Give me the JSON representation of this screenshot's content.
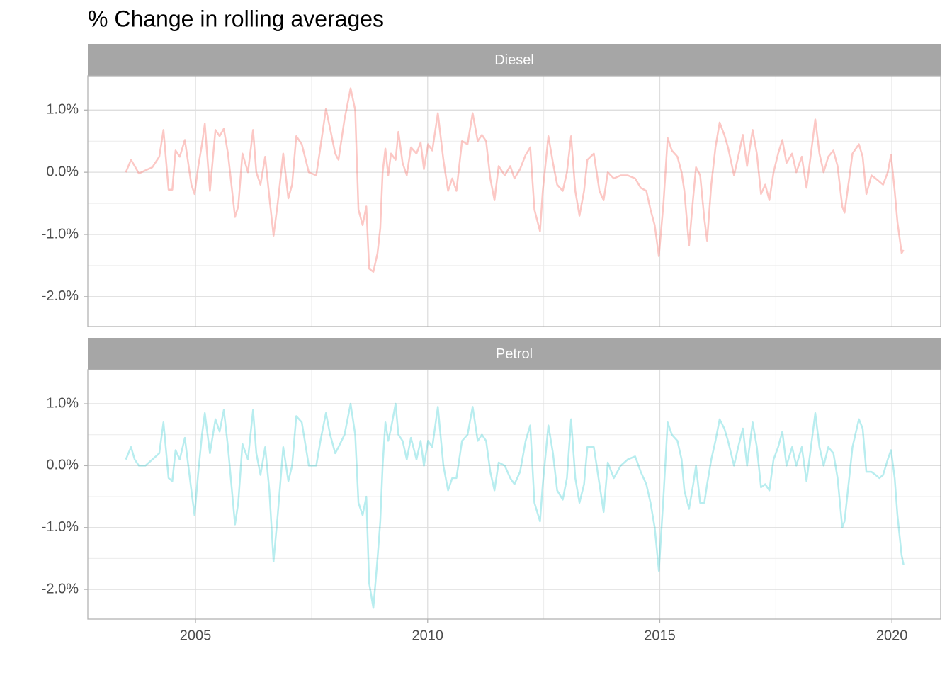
{
  "title": "% Change in rolling averages",
  "chart_data": [
    {
      "type": "line",
      "title": "Diesel",
      "color": "#f8766d",
      "opacity": 0.4,
      "x": [
        2003.5,
        2003.61,
        2003.69,
        2003.78,
        2003.92,
        2004.07,
        2004.22,
        2004.31,
        2004.42,
        2004.5,
        2004.57,
        2004.66,
        2004.77,
        2004.91,
        2004.98,
        2005.06,
        2005.14,
        2005.2,
        2005.31,
        2005.43,
        2005.52,
        2005.61,
        2005.7,
        2005.85,
        2005.92,
        2006.01,
        2006.13,
        2006.24,
        2006.31,
        2006.4,
        2006.5,
        2006.59,
        2006.68,
        2006.77,
        2006.89,
        2007.0,
        2007.08,
        2007.17,
        2007.29,
        2007.44,
        2007.6,
        2007.69,
        2007.81,
        2007.9,
        2008.01,
        2008.08,
        2008.21,
        2008.34,
        2008.44,
        2008.51,
        2008.6,
        2008.68,
        2008.74,
        2008.83,
        2008.92,
        2008.98,
        2009.03,
        2009.09,
        2009.15,
        2009.21,
        2009.31,
        2009.37,
        2009.46,
        2009.55,
        2009.64,
        2009.76,
        2009.85,
        2009.92,
        2010.01,
        2010.1,
        2010.22,
        2010.34,
        2010.44,
        2010.53,
        2010.62,
        2010.74,
        2010.86,
        2010.97,
        2011.08,
        2011.17,
        2011.26,
        2011.35,
        2011.44,
        2011.53,
        2011.66,
        2011.78,
        2011.87,
        2011.99,
        2012.11,
        2012.21,
        2012.3,
        2012.42,
        2012.48,
        2012.6,
        2012.7,
        2012.79,
        2012.91,
        2013.0,
        2013.09,
        2013.18,
        2013.27,
        2013.37,
        2013.44,
        2013.58,
        2013.7,
        2013.79,
        2013.88,
        2014.01,
        2014.16,
        2014.31,
        2014.47,
        2014.59,
        2014.71,
        2014.8,
        2014.89,
        2014.98,
        2015.08,
        2015.17,
        2015.26,
        2015.38,
        2015.47,
        2015.53,
        2015.63,
        2015.72,
        2015.78,
        2015.87,
        2015.96,
        2016.02,
        2016.11,
        2016.2,
        2016.29,
        2016.39,
        2016.47,
        2016.6,
        2016.69,
        2016.79,
        2016.88,
        2017.0,
        2017.09,
        2017.18,
        2017.27,
        2017.36,
        2017.45,
        2017.55,
        2017.64,
        2017.73,
        2017.85,
        2017.94,
        2018.06,
        2018.16,
        2018.24,
        2018.35,
        2018.44,
        2018.53,
        2018.63,
        2018.74,
        2018.83,
        2018.93,
        2018.98,
        2019.08,
        2019.15,
        2019.29,
        2019.37,
        2019.45,
        2019.56,
        2019.65,
        2019.73,
        2019.81,
        2019.91,
        2019.98,
        2020.06,
        2020.12,
        2020.21,
        2020.25
      ],
      "values": [
        0.0,
        0.2,
        0.1,
        -0.02,
        0.03,
        0.08,
        0.25,
        0.68,
        -0.28,
        -0.28,
        0.35,
        0.25,
        0.52,
        -0.2,
        -0.35,
        0.1,
        0.45,
        0.78,
        -0.3,
        0.68,
        0.58,
        0.7,
        0.3,
        -0.72,
        -0.55,
        0.3,
        0.0,
        0.68,
        0.0,
        -0.2,
        0.25,
        -0.4,
        -1.02,
        -0.5,
        0.3,
        -0.42,
        -0.2,
        0.58,
        0.45,
        0.0,
        -0.05,
        0.4,
        1.02,
        0.7,
        0.3,
        0.2,
        0.85,
        1.35,
        1.0,
        -0.6,
        -0.85,
        -0.55,
        -1.55,
        -1.6,
        -1.3,
        -0.9,
        0.0,
        0.38,
        -0.05,
        0.3,
        0.2,
        0.65,
        0.15,
        -0.05,
        0.4,
        0.3,
        0.48,
        0.05,
        0.45,
        0.35,
        0.95,
        0.2,
        -0.3,
        -0.1,
        -0.3,
        0.5,
        0.45,
        0.95,
        0.5,
        0.6,
        0.5,
        -0.1,
        -0.45,
        0.1,
        -0.05,
        0.1,
        -0.1,
        0.05,
        0.28,
        0.4,
        -0.6,
        -0.95,
        -0.3,
        0.58,
        0.15,
        -0.2,
        -0.3,
        0.0,
        0.58,
        -0.3,
        -0.7,
        -0.3,
        0.2,
        0.3,
        -0.3,
        -0.45,
        0.0,
        -0.1,
        -0.05,
        -0.05,
        -0.1,
        -0.25,
        -0.3,
        -0.6,
        -0.85,
        -1.35,
        -0.5,
        0.55,
        0.35,
        0.25,
        0.0,
        -0.3,
        -1.18,
        -0.4,
        0.08,
        -0.05,
        -0.75,
        -1.1,
        -0.2,
        0.4,
        0.8,
        0.6,
        0.4,
        -0.05,
        0.25,
        0.6,
        0.1,
        0.68,
        0.3,
        -0.35,
        -0.2,
        -0.45,
        0.0,
        0.3,
        0.52,
        0.15,
        0.3,
        0.0,
        0.25,
        -0.25,
        0.2,
        0.85,
        0.3,
        0.0,
        0.25,
        0.35,
        0.1,
        -0.55,
        -0.65,
        -0.1,
        0.3,
        0.45,
        0.25,
        -0.35,
        -0.05,
        -0.1,
        -0.15,
        -0.2,
        0.0,
        0.28,
        -0.3,
        -0.8,
        -1.3,
        -1.25
      ],
      "xlim": [
        2002.68,
        2021.05
      ],
      "xticks": [
        2005,
        2010,
        2015,
        2020
      ],
      "xminor": [
        2007.5,
        2012.5,
        2017.5
      ],
      "ylim": [
        -2.48,
        1.55
      ],
      "yticks": [
        {
          "value": -2,
          "label": "-2.0%"
        },
        {
          "value": -1,
          "label": "-1.0%"
        },
        {
          "value": 0,
          "label": "0.0%"
        },
        {
          "value": 1,
          "label": "1.0%"
        }
      ],
      "yminor": [
        -1.5,
        -0.5,
        0.5
      ],
      "grid": true
    },
    {
      "type": "line",
      "title": "Petrol",
      "color": "#00bfc4",
      "opacity": 0.28,
      "x": [
        2003.5,
        2003.61,
        2003.69,
        2003.78,
        2003.92,
        2004.07,
        2004.22,
        2004.31,
        2004.42,
        2004.5,
        2004.57,
        2004.66,
        2004.77,
        2004.91,
        2004.98,
        2005.06,
        2005.14,
        2005.2,
        2005.31,
        2005.43,
        2005.52,
        2005.61,
        2005.7,
        2005.85,
        2005.92,
        2006.01,
        2006.13,
        2006.24,
        2006.31,
        2006.4,
        2006.5,
        2006.59,
        2006.68,
        2006.77,
        2006.89,
        2007.0,
        2007.08,
        2007.17,
        2007.29,
        2007.44,
        2007.6,
        2007.69,
        2007.81,
        2007.9,
        2008.01,
        2008.08,
        2008.21,
        2008.34,
        2008.44,
        2008.51,
        2008.6,
        2008.68,
        2008.74,
        2008.83,
        2008.92,
        2008.98,
        2009.03,
        2009.09,
        2009.15,
        2009.21,
        2009.31,
        2009.37,
        2009.46,
        2009.55,
        2009.64,
        2009.76,
        2009.85,
        2009.92,
        2010.01,
        2010.1,
        2010.22,
        2010.34,
        2010.44,
        2010.53,
        2010.62,
        2010.74,
        2010.86,
        2010.97,
        2011.08,
        2011.17,
        2011.26,
        2011.35,
        2011.44,
        2011.53,
        2011.66,
        2011.78,
        2011.87,
        2011.99,
        2012.11,
        2012.21,
        2012.3,
        2012.42,
        2012.48,
        2012.6,
        2012.7,
        2012.79,
        2012.91,
        2013.0,
        2013.09,
        2013.18,
        2013.27,
        2013.37,
        2013.44,
        2013.58,
        2013.7,
        2013.79,
        2013.88,
        2014.01,
        2014.16,
        2014.31,
        2014.47,
        2014.59,
        2014.71,
        2014.8,
        2014.89,
        2014.98,
        2015.08,
        2015.17,
        2015.26,
        2015.38,
        2015.47,
        2015.53,
        2015.63,
        2015.72,
        2015.78,
        2015.87,
        2015.96,
        2016.02,
        2016.11,
        2016.2,
        2016.29,
        2016.39,
        2016.47,
        2016.6,
        2016.69,
        2016.79,
        2016.88,
        2017.0,
        2017.09,
        2017.18,
        2017.27,
        2017.36,
        2017.45,
        2017.55,
        2017.64,
        2017.73,
        2017.85,
        2017.94,
        2018.06,
        2018.16,
        2018.24,
        2018.35,
        2018.44,
        2018.53,
        2018.63,
        2018.74,
        2018.83,
        2018.93,
        2018.98,
        2019.08,
        2019.15,
        2019.29,
        2019.37,
        2019.45,
        2019.56,
        2019.65,
        2019.73,
        2019.81,
        2019.91,
        2019.98,
        2020.06,
        2020.12,
        2020.21,
        2020.25
      ],
      "values": [
        0.1,
        0.3,
        0.1,
        0.0,
        0.0,
        0.1,
        0.2,
        0.7,
        -0.2,
        -0.25,
        0.25,
        0.1,
        0.45,
        -0.4,
        -0.8,
        -0.1,
        0.5,
        0.85,
        0.2,
        0.75,
        0.55,
        0.9,
        0.3,
        -0.95,
        -0.6,
        0.35,
        0.1,
        0.9,
        0.2,
        -0.15,
        0.3,
        -0.4,
        -1.55,
        -0.8,
        0.3,
        -0.25,
        0.0,
        0.8,
        0.7,
        0.0,
        0.0,
        0.4,
        0.85,
        0.5,
        0.2,
        0.3,
        0.5,
        1.0,
        0.5,
        -0.6,
        -0.8,
        -0.5,
        -1.9,
        -2.3,
        -1.5,
        -0.9,
        0.0,
        0.7,
        0.4,
        0.6,
        1.0,
        0.5,
        0.4,
        0.1,
        0.45,
        0.1,
        0.4,
        0.0,
        0.4,
        0.3,
        0.95,
        0.0,
        -0.4,
        -0.2,
        -0.2,
        0.4,
        0.5,
        0.95,
        0.4,
        0.5,
        0.4,
        -0.1,
        -0.4,
        0.05,
        0.0,
        -0.2,
        -0.3,
        -0.1,
        0.4,
        0.65,
        -0.6,
        -0.9,
        -0.3,
        0.65,
        0.2,
        -0.4,
        -0.55,
        -0.2,
        0.75,
        -0.2,
        -0.6,
        -0.3,
        0.3,
        0.3,
        -0.3,
        -0.75,
        0.05,
        -0.2,
        0.0,
        0.1,
        0.15,
        -0.1,
        -0.3,
        -0.6,
        -1.0,
        -1.7,
        -0.5,
        0.7,
        0.5,
        0.4,
        0.1,
        -0.4,
        -0.7,
        -0.3,
        0.0,
        -0.6,
        -0.6,
        -0.3,
        0.1,
        0.4,
        0.75,
        0.6,
        0.4,
        0.0,
        0.3,
        0.6,
        0.0,
        0.7,
        0.3,
        -0.35,
        -0.3,
        -0.4,
        0.1,
        0.3,
        0.55,
        0.0,
        0.3,
        0.0,
        0.3,
        -0.25,
        0.2,
        0.85,
        0.3,
        0.0,
        0.3,
        0.2,
        -0.2,
        -1.0,
        -0.9,
        -0.2,
        0.3,
        0.75,
        0.6,
        -0.1,
        -0.1,
        -0.15,
        -0.2,
        -0.15,
        0.1,
        0.25,
        -0.2,
        -0.8,
        -1.45,
        -1.6
      ],
      "xlim": [
        2002.68,
        2021.05
      ],
      "xticks": [
        2005,
        2010,
        2015,
        2020
      ],
      "xminor": [
        2007.5,
        2012.5,
        2017.5
      ],
      "ylim": [
        -2.48,
        1.55
      ],
      "yticks": [
        {
          "value": -2,
          "label": "-2.0%"
        },
        {
          "value": -1,
          "label": "-1.0%"
        },
        {
          "value": 0,
          "label": "0.0%"
        },
        {
          "value": 1,
          "label": "1.0%"
        }
      ],
      "yminor": [
        -1.5,
        -0.5,
        0.5
      ],
      "grid": true
    }
  ]
}
